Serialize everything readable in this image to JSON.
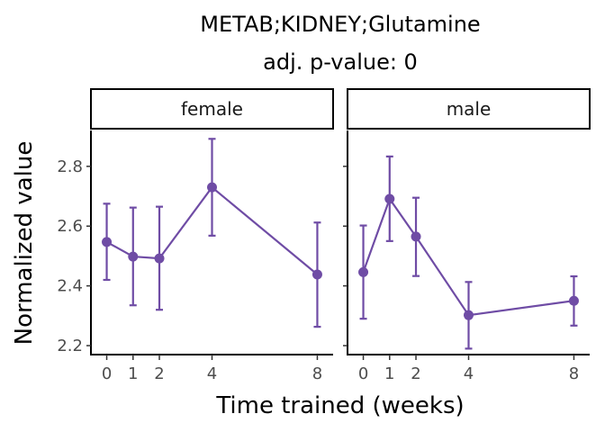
{
  "chart_data": {
    "type": "line",
    "title": "METAB;KIDNEY;Glutamine",
    "subtitle": "adj. p-value: 0",
    "xlabel": "Time trained (weeks)",
    "ylabel": "Normalized value",
    "x_ticks": [
      0,
      1,
      2,
      4,
      8
    ],
    "y_ticks": [
      2.2,
      2.4,
      2.6,
      2.8
    ],
    "y_tick_labels": [
      "2.2",
      "2.4",
      "2.6",
      "2.8"
    ],
    "ylim": [
      2.17,
      2.92
    ],
    "xlim": [
      -0.6,
      8.6
    ],
    "grid": false,
    "color": "#6f4ca5",
    "panels": [
      {
        "label": "female",
        "x": [
          0,
          1,
          2,
          4,
          8
        ],
        "y": [
          2.547,
          2.498,
          2.492,
          2.73,
          2.438
        ],
        "lower": [
          2.42,
          2.335,
          2.32,
          2.568,
          2.263
        ],
        "upper": [
          2.675,
          2.662,
          2.665,
          2.892,
          2.612
        ]
      },
      {
        "label": "male",
        "x": [
          0,
          1,
          2,
          4,
          8
        ],
        "y": [
          2.446,
          2.691,
          2.565,
          2.302,
          2.35
        ],
        "lower": [
          2.29,
          2.55,
          2.433,
          2.19,
          2.267
        ],
        "upper": [
          2.602,
          2.833,
          2.695,
          2.413,
          2.432
        ]
      }
    ]
  }
}
